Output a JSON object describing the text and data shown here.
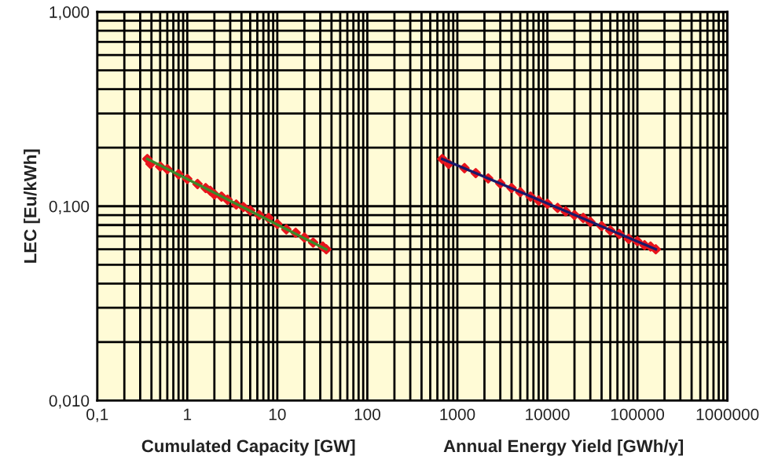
{
  "chart_data": {
    "type": "scatter",
    "ylabel": "LEC [Eu/kWh]",
    "xlabel": "Cumulated Capacity [GW]",
    "annotations": [
      "Annual Energy Yield [GWh/y]"
    ],
    "log": "xy",
    "grid": true,
    "legend": false,
    "xlim": [
      0.1,
      1000000
    ],
    "xticks": [
      {
        "value": 0.1,
        "label": "0,1"
      },
      1,
      10,
      100,
      1000,
      10000,
      100000,
      1000000
    ],
    "ylim": [
      0.01,
      1
    ],
    "yticks": [
      {
        "value": 0.01,
        "label": "0,010"
      },
      {
        "value": 0.1,
        "label": "0,100"
      },
      {
        "value": 1,
        "label": "1,000"
      }
    ],
    "series": [
      {
        "marker": "diamond",
        "color": "#e8141c",
        "x": [
          0.36,
          0.39,
          0.5,
          0.6,
          0.8,
          1.0,
          1.3,
          1.6,
          1.8,
          2.0,
          2.4,
          2.8,
          3.5,
          4.2,
          5.0,
          6.3,
          8,
          10,
          12.6,
          16,
          20,
          25,
          32,
          35
        ],
        "values": [
          0.175,
          0.165,
          0.16,
          0.155,
          0.146,
          0.138,
          0.13,
          0.124,
          0.12,
          0.115,
          0.112,
          0.108,
          0.102,
          0.099,
          0.095,
          0.09,
          0.087,
          0.081,
          0.076,
          0.073,
          0.069,
          0.065,
          0.062,
          0.06
        ]
      },
      {
        "type": "line",
        "color": "#3a8a2a",
        "x": [
          0.36,
          35
        ],
        "values": [
          0.175,
          0.06
        ]
      },
      {
        "marker": "diamond",
        "color": "#e8141c",
        "x": [
          680,
          800,
          1200,
          1600,
          2200,
          3000,
          4000,
          5000,
          6500,
          8000,
          10000,
          13000,
          16000,
          20000,
          25000,
          30000,
          40000,
          50000,
          63000,
          80000,
          100000,
          120000,
          140000,
          160000
        ],
        "values": [
          0.175,
          0.165,
          0.157,
          0.148,
          0.139,
          0.131,
          0.124,
          0.118,
          0.112,
          0.107,
          0.103,
          0.098,
          0.094,
          0.09,
          0.087,
          0.083,
          0.079,
          0.075,
          0.072,
          0.068,
          0.066,
          0.063,
          0.062,
          0.06
        ]
      },
      {
        "type": "line",
        "color": "#1a1a6a",
        "x": [
          680,
          160000
        ],
        "values": [
          0.175,
          0.06
        ]
      }
    ]
  }
}
